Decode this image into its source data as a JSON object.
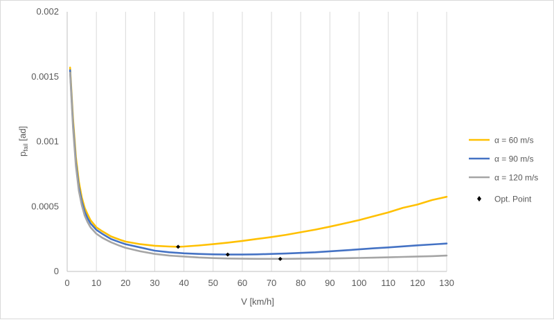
{
  "chart_data": {
    "type": "line",
    "title": "",
    "xlabel": "V [km/h]",
    "ylabel_main": "p",
    "ylabel_sub": "fail",
    "ylabel_unit": " [ad]",
    "xlim": [
      0,
      130
    ],
    "ylim": [
      0,
      0.002
    ],
    "x_ticks": [
      0,
      10,
      20,
      30,
      40,
      50,
      60,
      70,
      80,
      90,
      100,
      110,
      120,
      130
    ],
    "y_ticks": [
      0,
      0.0005,
      0.001,
      0.0015,
      0.002
    ],
    "y_tick_labels": [
      "0",
      "0.0005",
      "0.001",
      "0.0015",
      "0.002"
    ],
    "grid": "vertical",
    "legend_position": "right",
    "series": [
      {
        "name": "α = 60 m/s",
        "color": "#ffc000",
        "x": [
          1,
          2,
          3,
          4,
          5,
          6,
          7,
          8,
          10,
          12,
          15,
          18,
          20,
          25,
          30,
          35,
          38,
          40,
          45,
          50,
          55,
          60,
          65,
          70,
          75,
          80,
          85,
          90,
          95,
          100,
          105,
          110,
          115,
          120,
          125,
          130
        ],
        "y": [
          0.00157,
          0.00118,
          0.00088,
          0.00069,
          0.00057,
          0.00049,
          0.00044,
          0.000395,
          0.00034,
          0.00031,
          0.00027,
          0.000245,
          0.00023,
          0.00021,
          0.000198,
          0.000192,
          0.00019,
          0.000192,
          0.0002,
          0.00021,
          0.000222,
          0.000235,
          0.00025,
          0.000265,
          0.000282,
          0.000302,
          0.000322,
          0.000345,
          0.00037,
          0.000395,
          0.000425,
          0.000455,
          0.00049,
          0.000515,
          0.00055,
          0.000575
        ]
      },
      {
        "name": "α = 90 m/s",
        "color": "#4472c4",
        "x": [
          1,
          2,
          3,
          4,
          5,
          6,
          7,
          8,
          10,
          12,
          15,
          18,
          20,
          25,
          30,
          35,
          40,
          45,
          50,
          55,
          60,
          65,
          70,
          75,
          80,
          85,
          90,
          95,
          100,
          105,
          110,
          115,
          120,
          125,
          130
        ],
        "y": [
          0.00155,
          0.00114,
          0.00084,
          0.00065,
          0.00054,
          0.00046,
          0.00041,
          0.00037,
          0.00032,
          0.00029,
          0.00025,
          0.000225,
          0.00021,
          0.000185,
          0.00016,
          0.000148,
          0.00014,
          0.000135,
          0.000132,
          0.00013,
          0.00013,
          0.000132,
          0.000135,
          0.000138,
          0.000143,
          0.000148,
          0.000155,
          0.000162,
          0.00017,
          0.000178,
          0.000185,
          0.000193,
          0.000201,
          0.000208,
          0.000215
        ]
      },
      {
        "name": "α = 120 m/s",
        "color": "#a5a5a5",
        "x": [
          1,
          2,
          3,
          4,
          5,
          6,
          7,
          8,
          10,
          12,
          15,
          18,
          20,
          25,
          30,
          35,
          40,
          45,
          50,
          55,
          60,
          65,
          70,
          75,
          80,
          85,
          90,
          95,
          100,
          105,
          110,
          115,
          120,
          125,
          130
        ],
        "y": [
          0.00153,
          0.00111,
          0.00081,
          0.00062,
          0.00051,
          0.00043,
          0.00038,
          0.00034,
          0.00029,
          0.00026,
          0.000225,
          0.000198,
          0.000182,
          0.000155,
          0.000135,
          0.000122,
          0.000115,
          0.000108,
          0.000103,
          0.0001,
          9.8e-05,
          9.7e-05,
          9.7e-05,
          9.7e-05,
          9.8e-05,
          9.9e-05,
          0.0001,
          0.000102,
          0.000104,
          0.000106,
          0.000109,
          0.000112,
          0.000115,
          0.000118,
          0.000122
        ]
      }
    ],
    "opt_points": {
      "name": "Opt. Point",
      "color": "#000000",
      "x": [
        38,
        55,
        73
      ],
      "y": [
        0.00019,
        0.00013,
        9.7e-05
      ]
    }
  }
}
